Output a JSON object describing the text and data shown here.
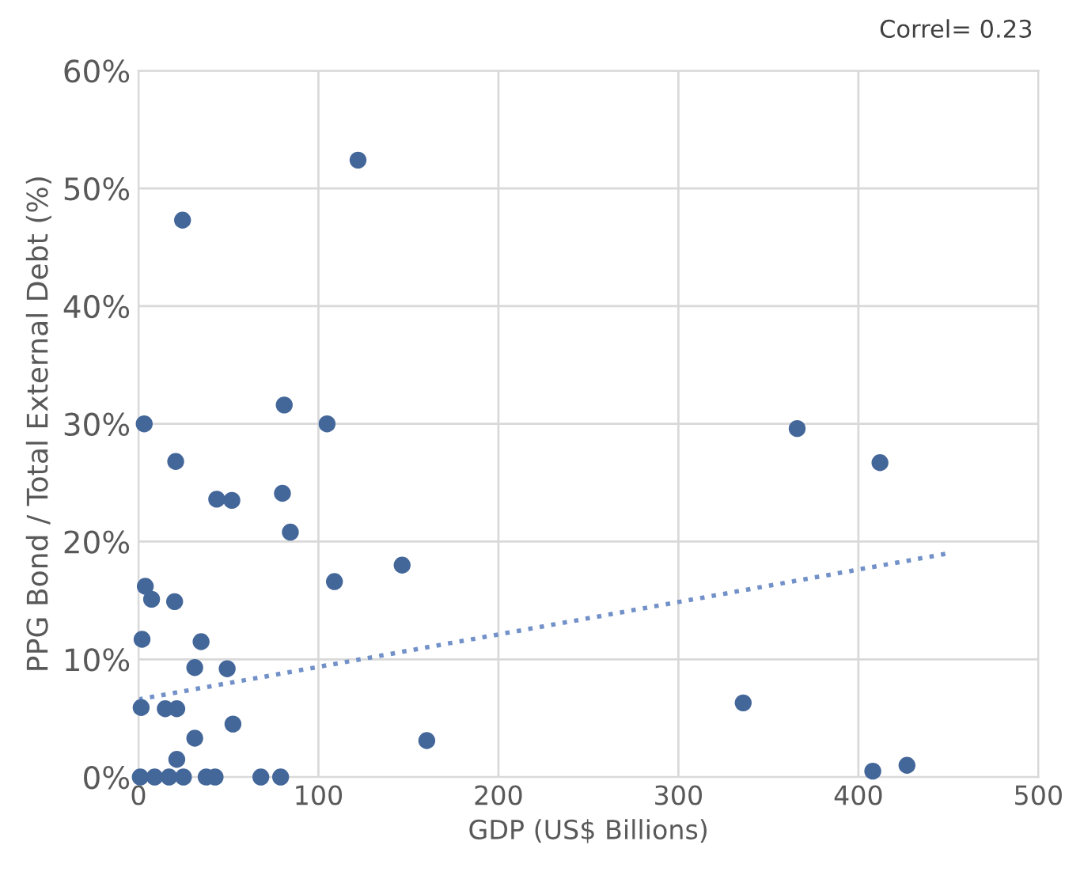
{
  "chart_data": {
    "type": "scatter",
    "xlabel": "GDP (US$ Billions)",
    "ylabel": "PPG Bond / Total External Debt (%)",
    "annotations": [
      "Correl= 0.23"
    ],
    "xlim": [
      0,
      500
    ],
    "xticks": [
      0,
      100,
      200,
      300,
      400,
      500
    ],
    "ylim": [
      0,
      60
    ],
    "yticks": [
      {
        "value": 0,
        "label": "0%"
      },
      {
        "value": 10,
        "label": "10%"
      },
      {
        "value": 20,
        "label": "20%"
      },
      {
        "value": 30,
        "label": "30%"
      },
      {
        "value": 40,
        "label": "40%"
      },
      {
        "value": 50,
        "label": "50%"
      },
      {
        "value": 60,
        "label": "60%"
      }
    ],
    "grid": true,
    "marker": "circle",
    "legend": false,
    "series": [
      {
        "color": "#44679a",
        "x": [
          122,
          24.5,
          81,
          3.2,
          104.8,
          20.7,
          43.5,
          51.9,
          80,
          84.4,
          146.5,
          108.9,
          3.8,
          7.3,
          20.1,
          2,
          34.8,
          31.3,
          49.3,
          1.5,
          14.9,
          21.3,
          52.5,
          31.3,
          160.2,
          21.3,
          336,
          366,
          412,
          408,
          427,
          1,
          9,
          17,
          25,
          37.6,
          42.6,
          68,
          79
        ],
        "values": [
          52.4,
          47.3,
          31.6,
          30,
          30,
          26.8,
          23.6,
          23.5,
          24.1,
          20.8,
          18,
          16.6,
          16.2,
          15.1,
          14.9,
          11.7,
          11.5,
          9.3,
          9.2,
          5.9,
          5.8,
          5.8,
          4.5,
          3.3,
          3.1,
          1.5,
          6.3,
          29.6,
          26.7,
          0.5,
          1,
          0,
          0,
          0,
          0,
          0,
          0,
          0,
          0
        ]
      },
      {
        "type": "line",
        "color": "#7291c8",
        "line_style": "dotted",
        "marker": "none",
        "x": [
          0,
          450
        ],
        "values": [
          6.6,
          19
        ]
      }
    ]
  }
}
